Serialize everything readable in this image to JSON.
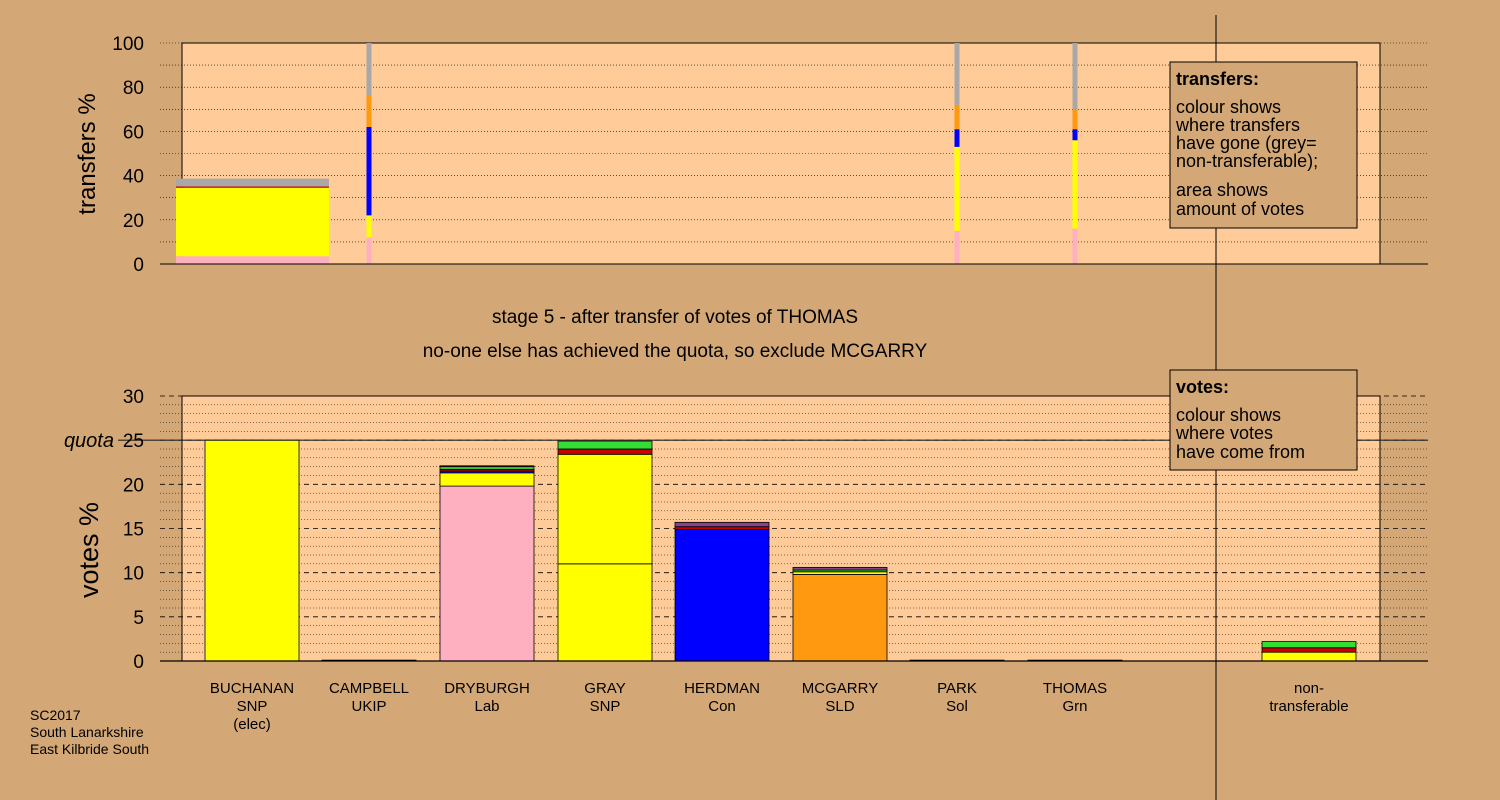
{
  "colors": {
    "background": "#d4a876",
    "plot_background": "#ffcc99",
    "yellow": "#ffff00",
    "pink": "#ffb0c0",
    "blue": "#0000ff",
    "orange": "#ff9910",
    "grey": "#a8a8a8",
    "green": "#33dd33",
    "red": "#cc0000",
    "purple": "#884488"
  },
  "chart_data": [
    {
      "type": "bar",
      "stacked": true,
      "ylabel": "transfers %",
      "ylim": [
        0,
        100
      ],
      "yticks": [
        0,
        20,
        40,
        60,
        80,
        100
      ],
      "grid": true,
      "bars": [
        {
          "group": "BUCHANAN",
          "width": "wide",
          "segments": [
            {
              "from": "pink",
              "value": 3.5
            },
            {
              "from": "yellow",
              "value": 31
            },
            {
              "from": "red",
              "value": 0.6
            },
            {
              "from": "grey",
              "value": 3.5
            }
          ]
        },
        {
          "group": "CAMPBELL",
          "width": "thin",
          "segments": [
            {
              "from": "pink",
              "value": 12
            },
            {
              "from": "yellow",
              "value": 10
            },
            {
              "from": "blue",
              "value": 40
            },
            {
              "from": "orange",
              "value": 14
            },
            {
              "from": "grey",
              "value": 24
            }
          ]
        },
        {
          "group": "PARK",
          "width": "thin",
          "segments": [
            {
              "from": "pink",
              "value": 15
            },
            {
              "from": "yellow",
              "value": 38
            },
            {
              "from": "blue",
              "value": 8
            },
            {
              "from": "orange",
              "value": 11
            },
            {
              "from": "grey",
              "value": 28
            }
          ]
        },
        {
          "group": "THOMAS",
          "width": "thin",
          "segments": [
            {
              "from": "pink",
              "value": 16
            },
            {
              "from": "yellow",
              "value": 40
            },
            {
              "from": "blue",
              "value": 5
            },
            {
              "from": "orange",
              "value": 9
            },
            {
              "from": "grey",
              "value": 30
            }
          ]
        }
      ]
    },
    {
      "type": "bar",
      "stacked": true,
      "ylabel": "votes %",
      "ylim": [
        0,
        30
      ],
      "yticks": [
        0,
        5,
        10,
        15,
        20,
        25,
        30
      ],
      "quota": 25,
      "quota_label": "quota",
      "grid": true,
      "categories": [
        {
          "name": "BUCHANAN",
          "party": "SNP",
          "note": "(elec)"
        },
        {
          "name": "CAMPBELL",
          "party": "UKIP",
          "note": ""
        },
        {
          "name": "DRYBURGH",
          "party": "Lab",
          "note": ""
        },
        {
          "name": "GRAY",
          "party": "SNP",
          "note": ""
        },
        {
          "name": "HERDMAN",
          "party": "Con",
          "note": ""
        },
        {
          "name": "MCGARRY",
          "party": "SLD",
          "note": ""
        },
        {
          "name": "PARK",
          "party": "Sol",
          "note": ""
        },
        {
          "name": "THOMAS",
          "party": "Grn",
          "note": ""
        }
      ],
      "nontransferable": {
        "line1": "non-",
        "line2": "transferable"
      },
      "stacks": [
        [
          {
            "from": "yellow",
            "value": 25.0
          }
        ],
        [
          {
            "from": "yellow",
            "value": 0.1
          }
        ],
        [
          {
            "from": "pink",
            "value": 19.8
          },
          {
            "from": "yellow",
            "value": 1.5
          },
          {
            "from": "blue",
            "value": 0.2
          },
          {
            "from": "red",
            "value": 0.2
          },
          {
            "from": "green",
            "value": 0.3
          },
          {
            "from": "purple",
            "value": 0.1
          }
        ],
        [
          {
            "from": "yellow",
            "value": 11.0
          },
          {
            "from": "yellow",
            "value": 12.4
          },
          {
            "from": "red",
            "value": 0.6
          },
          {
            "from": "green",
            "value": 0.9
          }
        ],
        [
          {
            "from": "blue",
            "value": 14.9
          },
          {
            "from": "red",
            "value": 0.3
          },
          {
            "from": "purple",
            "value": 0.5
          }
        ],
        [
          {
            "from": "orange",
            "value": 9.8
          },
          {
            "from": "yellow",
            "value": 0.3
          },
          {
            "from": "green",
            "value": 0.2
          },
          {
            "from": "purple",
            "value": 0.3
          }
        ],
        [
          {
            "from": "yellow",
            "value": 0.1
          }
        ],
        [
          {
            "from": "yellow",
            "value": 0.1
          }
        ]
      ],
      "nontransferable_stack": [
        {
          "from": "yellow",
          "value": 1.0
        },
        {
          "from": "red",
          "value": 0.5
        },
        {
          "from": "green",
          "value": 0.7
        }
      ]
    }
  ],
  "stage_text": {
    "line1": "stage 5 - after transfer of votes of THOMAS",
    "line2": "no-one else has achieved the quota, so exclude MCGARRY"
  },
  "legend_transfers": {
    "title": "transfers:",
    "lines1": [
      "colour shows",
      "where transfers",
      "have gone (grey=",
      "non-transferable);"
    ],
    "lines2": [
      "area shows",
      "amount of votes"
    ]
  },
  "legend_votes": {
    "title": "votes:",
    "lines": [
      "colour shows",
      "where votes",
      "have come from"
    ]
  },
  "footer": {
    "line1": "SC2017",
    "line2": "South Lanarkshire",
    "line3": "East Kilbride South"
  }
}
